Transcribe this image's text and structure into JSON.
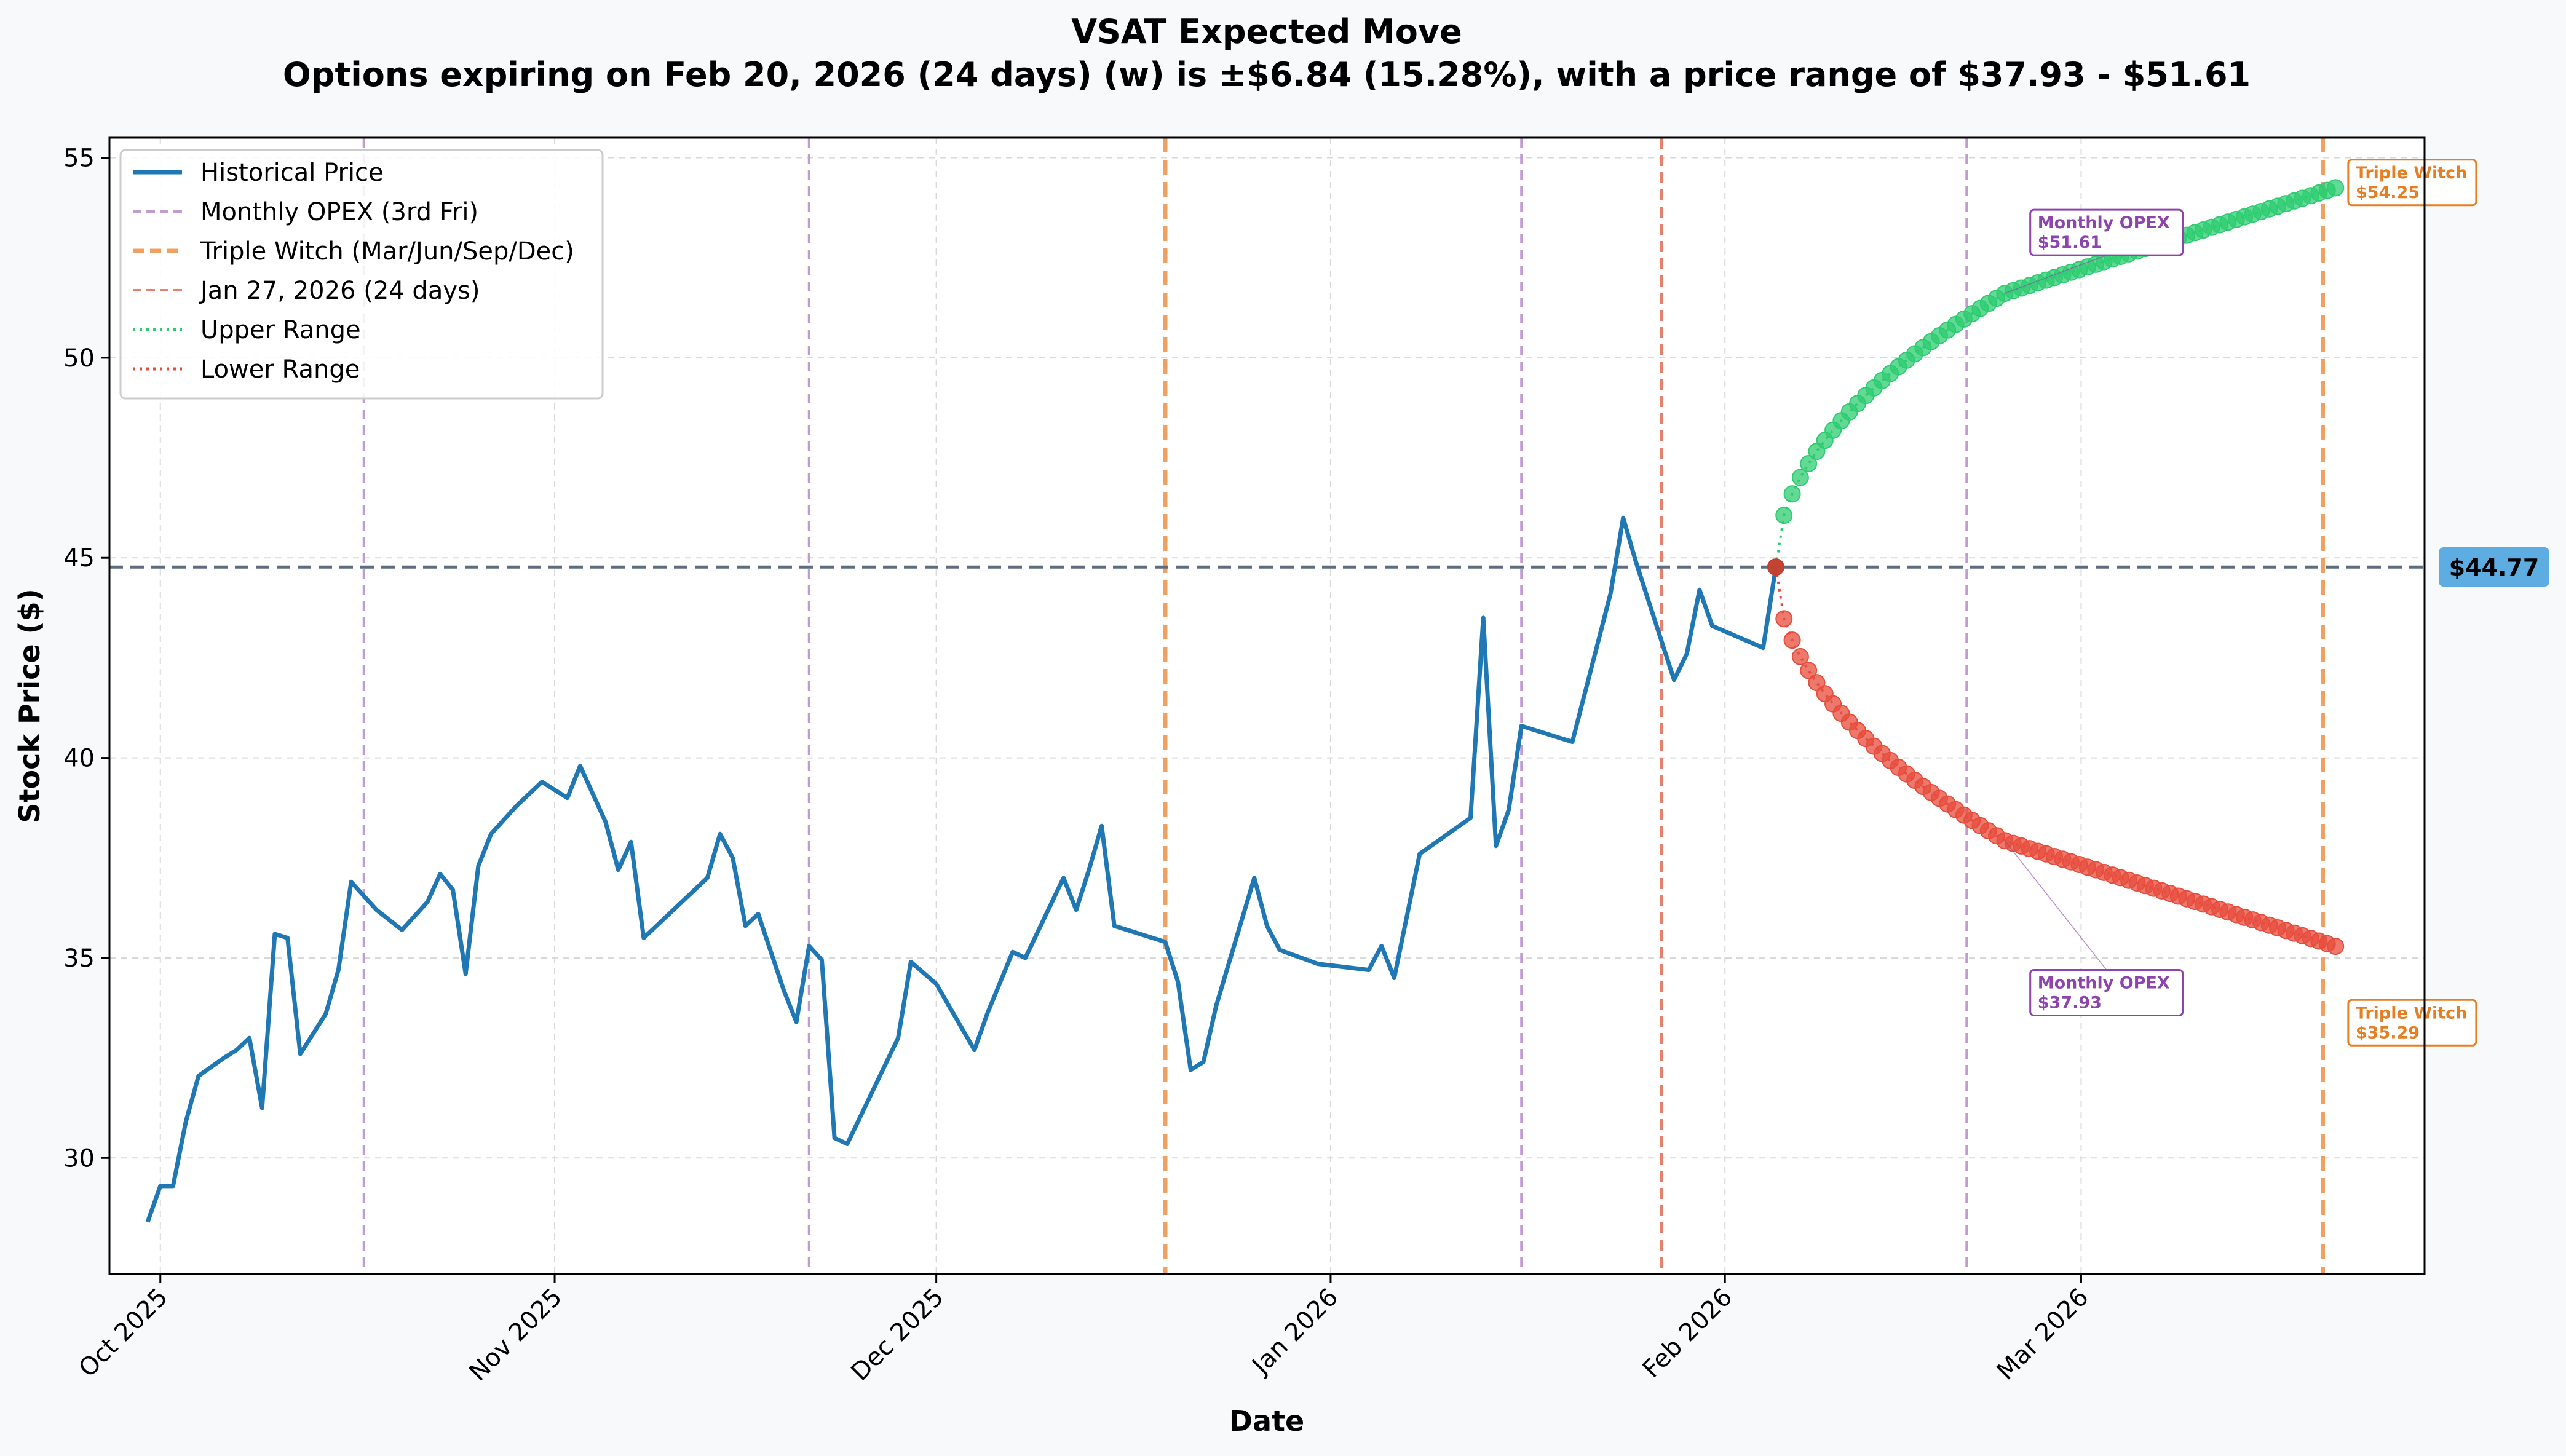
{
  "chart_data": {
    "type": "line",
    "title": "VSAT Expected Move",
    "subtitle": "Options expiring on Feb 20, 2026 (24 days) (w) is ±$6.84 (15.28%), with a price range of $37.93 - $51.61",
    "xlabel": "Date",
    "ylabel": "Stock Price ($)",
    "xlim": [
      "2025-09-27",
      "2026-03-28"
    ],
    "ylim": [
      27.1,
      55.5
    ],
    "x_ticks": [
      {
        "date": "2025-10-01",
        "label": "Oct 2025"
      },
      {
        "date": "2025-11-01",
        "label": "Nov 2025"
      },
      {
        "date": "2025-12-01",
        "label": "Dec 2025"
      },
      {
        "date": "2026-01-01",
        "label": "Jan 2026"
      },
      {
        "date": "2026-02-01",
        "label": "Feb 2026"
      },
      {
        "date": "2026-03-01",
        "label": "Mar 2026"
      }
    ],
    "y_ticks": [
      30,
      35,
      40,
      45,
      50,
      55
    ],
    "grid": true,
    "legend_position": "top-left",
    "current_price": 44.77,
    "current_price_label": "$44.77",
    "colors": {
      "historical": "#1f77b4",
      "monthly_opex": "#c39bd3",
      "triple_witch": "#f0a060",
      "today": "#e8806e",
      "upper": "#2ecc71",
      "lower": "#e74c3c",
      "price_line": "#5d6d7e",
      "price_badge": "#5dade2",
      "opex_text": "#8e44ad",
      "witch_text": "#e67e22"
    },
    "legend": [
      {
        "label": "Historical Price",
        "style": "solid",
        "color": "#1f77b4"
      },
      {
        "label": "Monthly OPEX (3rd Fri)",
        "style": "dashed",
        "color": "#c39bd3"
      },
      {
        "label": "Triple Witch (Mar/Jun/Sep/Dec)",
        "style": "dashed-bold",
        "color": "#f0a060"
      },
      {
        "label": "Jan 27, 2026 (24 days)",
        "style": "dashed",
        "color": "#e8806e"
      },
      {
        "label": "Upper Range",
        "style": "dotted",
        "color": "#2ecc71"
      },
      {
        "label": "Lower Range",
        "style": "dotted",
        "color": "#e74c3c"
      }
    ],
    "vlines": [
      {
        "date": "2025-10-17",
        "kind": "monthly_opex"
      },
      {
        "date": "2025-11-21",
        "kind": "monthly_opex"
      },
      {
        "date": "2025-12-19",
        "kind": "triple_witch"
      },
      {
        "date": "2026-01-16",
        "kind": "monthly_opex"
      },
      {
        "date": "2026-01-27",
        "kind": "today"
      },
      {
        "date": "2026-02-20",
        "kind": "monthly_opex"
      },
      {
        "date": "2026-03-20",
        "kind": "triple_witch"
      }
    ],
    "series": [
      {
        "name": "Historical Price",
        "points": [
          [
            "2025-09-30",
            28.4
          ],
          [
            "2025-10-01",
            29.3
          ],
          [
            "2025-10-02",
            29.3
          ],
          [
            "2025-10-03",
            30.9
          ],
          [
            "2025-10-04",
            32.05
          ],
          [
            "2025-10-06",
            32.5
          ],
          [
            "2025-10-07",
            32.7
          ],
          [
            "2025-10-08",
            33.0
          ],
          [
            "2025-10-09",
            31.25
          ],
          [
            "2025-10-10",
            35.6
          ],
          [
            "2025-10-11",
            35.5
          ],
          [
            "2025-10-12",
            32.6
          ],
          [
            "2025-10-14",
            33.6
          ],
          [
            "2025-10-15",
            34.7
          ],
          [
            "2025-10-16",
            36.9
          ],
          [
            "2025-10-18",
            36.2
          ],
          [
            "2025-10-20",
            35.7
          ],
          [
            "2025-10-22",
            36.4
          ],
          [
            "2025-10-23",
            37.1
          ],
          [
            "2025-10-24",
            36.7
          ],
          [
            "2025-10-25",
            34.6
          ],
          [
            "2025-10-26",
            37.3
          ],
          [
            "2025-10-27",
            38.1
          ],
          [
            "2025-10-29",
            38.8
          ],
          [
            "2025-10-31",
            39.4
          ],
          [
            "2025-11-02",
            39.0
          ],
          [
            "2025-11-03",
            39.8
          ],
          [
            "2025-11-05",
            38.4
          ],
          [
            "2025-11-06",
            37.2
          ],
          [
            "2025-11-07",
            37.9
          ],
          [
            "2025-11-08",
            35.5
          ],
          [
            "2025-11-09",
            35.8
          ],
          [
            "2025-11-11",
            36.4
          ],
          [
            "2025-11-13",
            37.0
          ],
          [
            "2025-11-14",
            38.1
          ],
          [
            "2025-11-15",
            37.5
          ],
          [
            "2025-11-16",
            35.8
          ],
          [
            "2025-11-17",
            36.1
          ],
          [
            "2025-11-19",
            34.2
          ],
          [
            "2025-11-20",
            33.4
          ],
          [
            "2025-11-21",
            35.3
          ],
          [
            "2025-11-22",
            34.95
          ],
          [
            "2025-11-23",
            30.5
          ],
          [
            "2025-11-24",
            30.35
          ],
          [
            "2025-11-28",
            33.0
          ],
          [
            "2025-11-29",
            34.9
          ],
          [
            "2025-12-01",
            34.35
          ],
          [
            "2025-12-04",
            32.7
          ],
          [
            "2025-12-05",
            33.6
          ],
          [
            "2025-12-07",
            35.15
          ],
          [
            "2025-12-08",
            35.0
          ],
          [
            "2025-12-11",
            37.0
          ],
          [
            "2025-12-12",
            36.2
          ],
          [
            "2025-12-13",
            37.2
          ],
          [
            "2025-12-14",
            38.3
          ],
          [
            "2025-12-15",
            35.8
          ],
          [
            "2025-12-19",
            35.4
          ],
          [
            "2025-12-20",
            34.4
          ],
          [
            "2025-12-21",
            32.2
          ],
          [
            "2025-12-22",
            32.4
          ],
          [
            "2025-12-23",
            33.8
          ],
          [
            "2025-12-26",
            37.0
          ],
          [
            "2025-12-27",
            35.8
          ],
          [
            "2025-12-28",
            35.2
          ],
          [
            "2025-12-31",
            34.85
          ],
          [
            "2026-01-04",
            34.7
          ],
          [
            "2026-01-05",
            35.3
          ],
          [
            "2026-01-06",
            34.5
          ],
          [
            "2026-01-08",
            37.6
          ],
          [
            "2026-01-12",
            38.5
          ],
          [
            "2026-01-13",
            43.5
          ],
          [
            "2026-01-14",
            37.8
          ],
          [
            "2026-01-15",
            38.7
          ],
          [
            "2026-01-16",
            40.8
          ],
          [
            "2026-01-20",
            40.4
          ],
          [
            "2026-01-23",
            44.1
          ],
          [
            "2026-01-24",
            46.0
          ],
          [
            "2026-01-25",
            44.9
          ],
          [
            "2026-01-28",
            41.95
          ],
          [
            "2026-01-29",
            42.6
          ],
          [
            "2026-01-30",
            44.2
          ],
          [
            "2026-01-31",
            43.3
          ],
          [
            "2026-02-04",
            42.75
          ],
          [
            "2026-02-05",
            44.77
          ]
        ]
      },
      {
        "name": "Upper Range",
        "start": [
          "2026-02-05",
          44.77
        ],
        "mid": [
          "2026-02-23",
          51.61
        ],
        "end": [
          "2026-03-21",
          54.25
        ]
      },
      {
        "name": "Lower Range",
        "start": [
          "2026-02-05",
          44.77
        ],
        "mid": [
          "2026-02-23",
          37.93
        ],
        "end": [
          "2026-03-21",
          35.29
        ]
      }
    ],
    "annotations": [
      {
        "kind": "opex",
        "line1": "Monthly OPEX",
        "line2": "$51.61",
        "at": [
          "2026-02-23",
          51.61
        ],
        "label_at": [
          "2026-02-25",
          53.7
        ]
      },
      {
        "kind": "opex",
        "line1": "Monthly OPEX",
        "line2": "$37.93",
        "at": [
          "2026-02-23",
          37.93
        ],
        "label_at": [
          "2026-02-25",
          34.7
        ]
      },
      {
        "kind": "witch",
        "line1": "Triple Witch",
        "line2": "$54.25",
        "at": [
          "2026-03-21",
          54.25
        ],
        "label_at": [
          "2026-03-22",
          54.95
        ]
      },
      {
        "kind": "witch",
        "line1": "Triple Witch",
        "line2": "$35.29",
        "at": [
          "2026-03-21",
          35.29
        ],
        "label_at": [
          "2026-03-22",
          33.95
        ]
      }
    ]
  }
}
